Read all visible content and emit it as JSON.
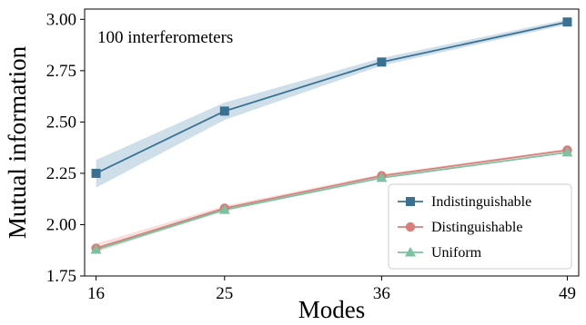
{
  "chart_data": {
    "type": "line",
    "title": "",
    "xlabel": "Modes",
    "ylabel": "Mutual information",
    "annotation": "100 interferometers",
    "x": [
      16,
      25,
      36,
      49
    ],
    "x_ticks": [
      "16",
      "25",
      "36",
      "49"
    ],
    "xlim": [
      15.2,
      49.8
    ],
    "ylim": [
      1.75,
      3.05
    ],
    "y_ticks": [
      "1.75",
      "2.00",
      "2.25",
      "2.50",
      "2.75",
      "3.00"
    ],
    "y_tick_values": [
      1.75,
      2.0,
      2.25,
      2.5,
      2.75,
      3.0
    ],
    "grid": false,
    "legend_position": "lower-right",
    "series": [
      {
        "name": "Indistinguishable",
        "marker": "square",
        "color": "#3a7193",
        "band_color": "#adc9dc",
        "values": [
          2.25,
          2.553,
          2.792,
          2.987
        ],
        "lower": [
          2.18,
          2.51,
          2.775,
          2.975
        ],
        "upper": [
          2.315,
          2.595,
          2.812,
          3.0
        ]
      },
      {
        "name": "Distinguishable",
        "marker": "circle",
        "color": "#d87f7b",
        "band_color": "#f4c9c8",
        "values": [
          1.885,
          2.08,
          2.238,
          2.363
        ],
        "lower": [
          1.865,
          2.068,
          2.23,
          2.357
        ],
        "upper": [
          1.908,
          2.092,
          2.246,
          2.369
        ]
      },
      {
        "name": "Uniform",
        "marker": "triangle",
        "color": "#7cc2a1",
        "band_color": "#c4e6d6",
        "values": [
          1.878,
          2.072,
          2.228,
          2.352
        ],
        "lower": [
          1.87,
          2.066,
          2.224,
          2.349
        ],
        "upper": [
          1.886,
          2.078,
          2.232,
          2.355
        ]
      }
    ]
  }
}
